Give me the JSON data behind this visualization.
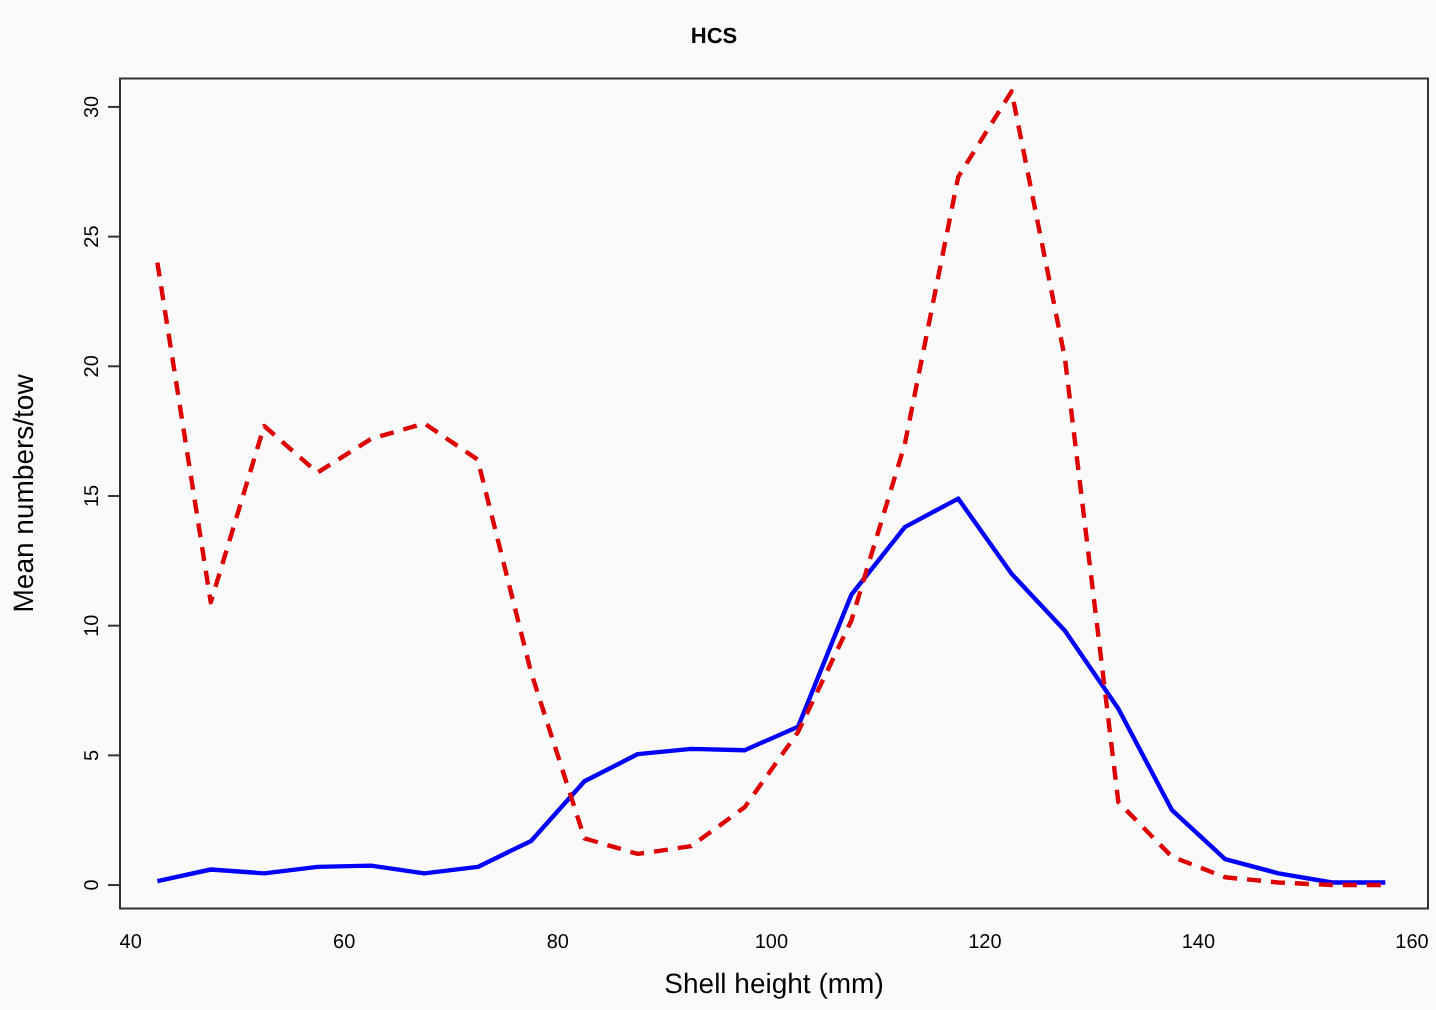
{
  "chart_data": {
    "type": "line",
    "title": "HCS",
    "xlabel": "Shell height (mm)",
    "ylabel": "Mean numbers/tow",
    "x": [
      42.5,
      47.5,
      52.5,
      57.5,
      62.5,
      67.5,
      72.5,
      77.5,
      82.5,
      87.5,
      92.5,
      97.5,
      102.5,
      107.5,
      112.5,
      117.5,
      122.5,
      127.5,
      132.5,
      137.5,
      142.5,
      147.5,
      152.5,
      157.5
    ],
    "series": [
      {
        "color": "#dd0000",
        "line_style": "dashed",
        "values": [
          24,
          10.9,
          17.7,
          15.9,
          17.2,
          17.8,
          16.4,
          8.2,
          1.8,
          1.2,
          1.5,
          3.0,
          5.9,
          10.2,
          17.0,
          27.3,
          30.6,
          20.3,
          3.2,
          1.1,
          0.3,
          0.1,
          0,
          0
        ]
      },
      {
        "color": "#0000ff",
        "line_style": "solid",
        "values": [
          0.15,
          0.6,
          0.45,
          0.7,
          0.75,
          0.45,
          0.7,
          1.7,
          4.0,
          5.05,
          5.25,
          5.2,
          6.1,
          11.2,
          13.8,
          14.9,
          12.0,
          9.8,
          6.8,
          2.9,
          1.0,
          0.45,
          0.1,
          0.1
        ]
      }
    ],
    "xlim": [
      39,
      161.5
    ],
    "xticks": [
      40,
      60,
      80,
      100,
      120,
      140,
      160
    ],
    "ylim": [
      -0.9,
      31.1
    ],
    "yticks": [
      0,
      5,
      10,
      15,
      20,
      25,
      30
    ],
    "grid": false,
    "legend": false,
    "marker": "none"
  }
}
